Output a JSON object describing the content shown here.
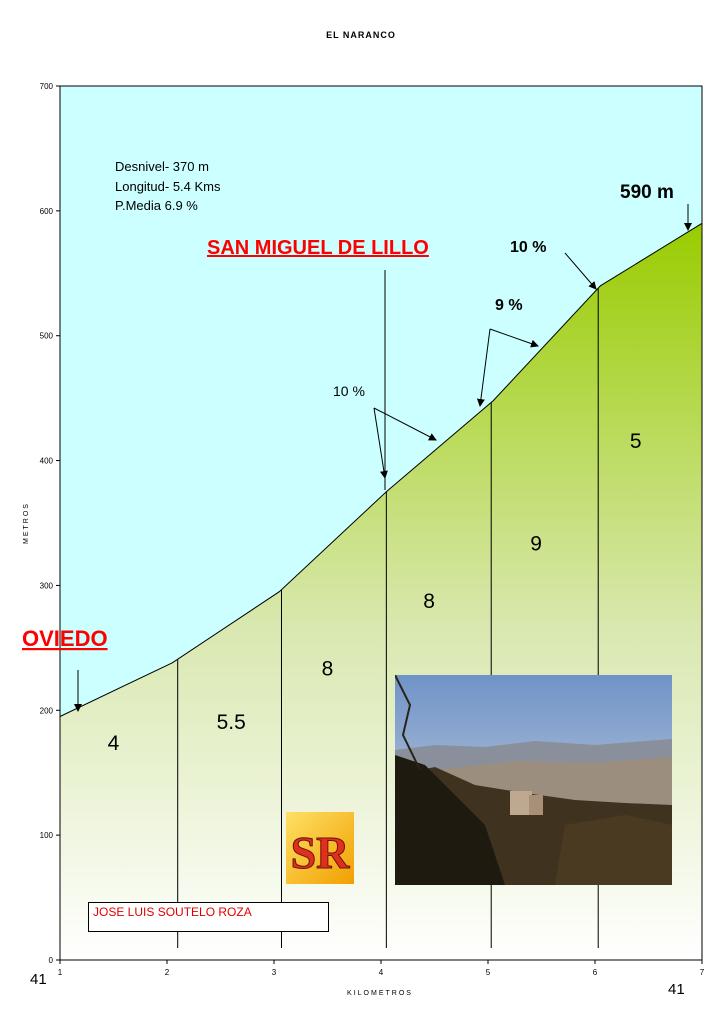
{
  "chart_data": {
    "type": "area",
    "title": "EL NARANCO",
    "xlabel": "KILOMETROS",
    "ylabel": "METROS",
    "xlim": [
      1,
      7
    ],
    "ylim": [
      0,
      700
    ],
    "x_ticks": [
      1,
      2,
      3,
      4,
      5,
      6,
      7
    ],
    "y_ticks": [
      0,
      100,
      200,
      300,
      400,
      500,
      600,
      700
    ],
    "profile": {
      "x": [
        1,
        2.05,
        3.05,
        4.05,
        5.05,
        6.05,
        7
      ],
      "y": [
        195,
        238,
        295,
        375,
        448,
        540,
        590
      ]
    },
    "segment_dividers_x": [
      2.1,
      3.07,
      4.05,
      5.03,
      6.03
    ],
    "segment_gradients": [
      {
        "label": "4",
        "x": 1.5,
        "y": 168
      },
      {
        "label": "5.5",
        "x": 2.6,
        "y": 185
      },
      {
        "label": "8",
        "x": 3.5,
        "y": 228
      },
      {
        "label": "8",
        "x": 4.45,
        "y": 282
      },
      {
        "label": "9",
        "x": 5.45,
        "y": 328
      },
      {
        "label": "5",
        "x": 6.38,
        "y": 410
      }
    ],
    "stats": [
      "Desnivel- 370 m",
      "Longitud- 5.4 Kms",
      "P.Media 6.9 %"
    ],
    "annotations": {
      "start": "OVIEDO",
      "landmark": "SAN MIGUEL DE LILLO",
      "summit": "590 m",
      "pct_1": "10 %",
      "pct_2": "9 %",
      "pct_3": "10 %"
    },
    "corner_left": "41",
    "corner_right": "41",
    "colors": {
      "sky": "#ccffff",
      "slope_top": "#99cc00",
      "slope_bottom": "#ffffff",
      "label_red": "#ff0000"
    }
  },
  "logo": {
    "letters": "SR"
  },
  "author": "JOSE LUIS SOUTELO ROZA"
}
